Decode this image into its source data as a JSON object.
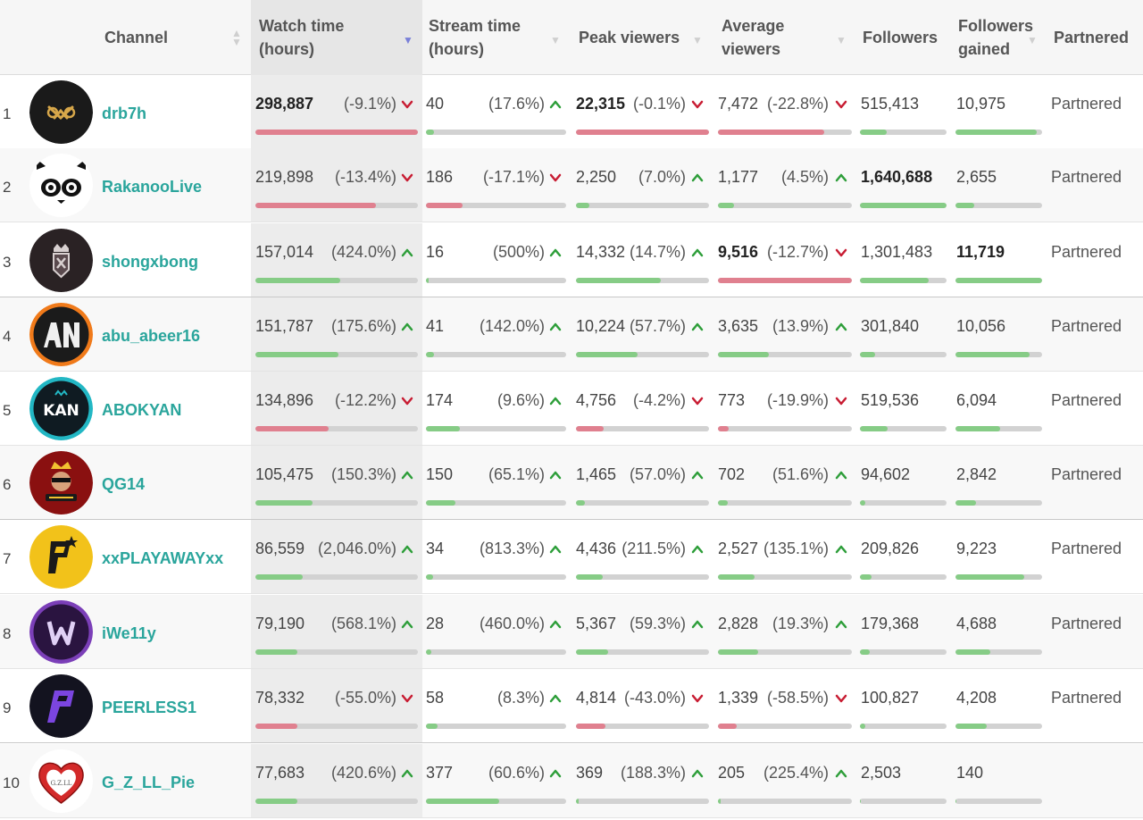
{
  "colors": {
    "up": "#2e9e3a",
    "down": "#c81d33",
    "bar_red": "#e0808f",
    "bar_green": "#86cc86",
    "channel": "#2aa59c"
  },
  "headers": {
    "channel": "Channel",
    "watch_line1": "Watch time",
    "watch_line2": "(hours)",
    "stream_line1": "Stream time",
    "stream_line2": "(hours)",
    "peak": "Peak viewers",
    "avg_line1": "Average",
    "avg_line2": "viewers",
    "followers": "Followers",
    "gained_line1": "Followers",
    "gained_line2": "gained",
    "partnered": "Partnered"
  },
  "rows": [
    {
      "rank": "1",
      "channel": "drb7h",
      "avatar_icon": "drb7h-logo-icon",
      "watch": {
        "value": "298,887",
        "change": "(-9.1%)",
        "dir": "down",
        "bar": 1.0,
        "bold": true
      },
      "stream": {
        "value": "40",
        "change": "(17.6%)",
        "dir": "up",
        "bar": 0.06
      },
      "peak": {
        "value": "22,315",
        "change": "(-0.1%)",
        "dir": "down",
        "bar": 1.0,
        "bold": true
      },
      "avg": {
        "value": "7,472",
        "change": "(-22.8%)",
        "dir": "down",
        "bar": 0.79
      },
      "followers": {
        "value": "515,413",
        "bar": 0.31
      },
      "gained": {
        "value": "10,975",
        "bar": 0.94
      },
      "partnered": "Partnered"
    },
    {
      "rank": "2",
      "channel": "RakanooLive",
      "avatar_icon": "panda-icon",
      "watch": {
        "value": "219,898",
        "change": "(-13.4%)",
        "dir": "down",
        "bar": 0.74
      },
      "stream": {
        "value": "186",
        "change": "(-17.1%)",
        "dir": "down",
        "bar": 0.26
      },
      "peak": {
        "value": "2,250",
        "change": "(7.0%)",
        "dir": "up",
        "bar": 0.1
      },
      "avg": {
        "value": "1,177",
        "change": "(4.5%)",
        "dir": "up",
        "bar": 0.12
      },
      "followers": {
        "value": "1,640,688",
        "bar": 1.0,
        "bold": true
      },
      "gained": {
        "value": "2,655",
        "bar": 0.22
      },
      "partnered": "Partnered"
    },
    {
      "rank": "3",
      "channel": "shongxbong",
      "avatar_icon": "crown-shield-icon",
      "watch": {
        "value": "157,014",
        "change": "(424.0%)",
        "dir": "up",
        "bar": 0.52
      },
      "stream": {
        "value": "16",
        "change": "(500%)",
        "dir": "up",
        "bar": 0.02
      },
      "peak": {
        "value": "14,332",
        "change": "(14.7%)",
        "dir": "up",
        "bar": 0.64
      },
      "avg": {
        "value": "9,516",
        "change": "(-12.7%)",
        "dir": "down",
        "bar": 1.0,
        "bold": true
      },
      "followers": {
        "value": "1,301,483",
        "bar": 0.79
      },
      "gained": {
        "value": "11,719",
        "bar": 1.0,
        "bold": true
      },
      "partnered": "Partnered"
    },
    {
      "rank": "4",
      "channel": "abu_abeer16",
      "avatar_icon": "an-monogram-icon",
      "watch": {
        "value": "151,787",
        "change": "(175.6%)",
        "dir": "up",
        "bar": 0.51
      },
      "stream": {
        "value": "41",
        "change": "(142.0%)",
        "dir": "up",
        "bar": 0.06
      },
      "peak": {
        "value": "10,224",
        "change": "(57.7%)",
        "dir": "up",
        "bar": 0.46
      },
      "avg": {
        "value": "3,635",
        "change": "(13.9%)",
        "dir": "up",
        "bar": 0.38
      },
      "followers": {
        "value": "301,840",
        "bar": 0.18
      },
      "gained": {
        "value": "10,056",
        "bar": 0.86
      },
      "partnered": "Partnered"
    },
    {
      "rank": "5",
      "channel": "ABOKYAN",
      "avatar_icon": "kan-logo-icon",
      "watch": {
        "value": "134,896",
        "change": "(-12.2%)",
        "dir": "down",
        "bar": 0.45
      },
      "stream": {
        "value": "174",
        "change": "(9.6%)",
        "dir": "up",
        "bar": 0.24
      },
      "peak": {
        "value": "4,756",
        "change": "(-4.2%)",
        "dir": "down",
        "bar": 0.21,
        "barColor": "red"
      },
      "avg": {
        "value": "773",
        "change": "(-19.9%)",
        "dir": "down",
        "bar": 0.08,
        "barColor": "red"
      },
      "followers": {
        "value": "519,536",
        "bar": 0.32
      },
      "gained": {
        "value": "6,094",
        "bar": 0.52
      },
      "partnered": "Partnered"
    },
    {
      "rank": "6",
      "channel": "QG14",
      "avatar_icon": "gamer-crown-icon",
      "watch": {
        "value": "105,475",
        "change": "(150.3%)",
        "dir": "up",
        "bar": 0.35
      },
      "stream": {
        "value": "150",
        "change": "(65.1%)",
        "dir": "up",
        "bar": 0.21
      },
      "peak": {
        "value": "1,465",
        "change": "(57.0%)",
        "dir": "up",
        "bar": 0.07
      },
      "avg": {
        "value": "702",
        "change": "(51.6%)",
        "dir": "up",
        "bar": 0.07
      },
      "followers": {
        "value": "94,602",
        "bar": 0.06
      },
      "gained": {
        "value": "2,842",
        "bar": 0.24
      },
      "partnered": "Partnered"
    },
    {
      "rank": "7",
      "channel": "xxPLAYAWAYxx",
      "avatar_icon": "p-star-icon",
      "watch": {
        "value": "86,559",
        "change": "(2,046.0%)",
        "dir": "up",
        "bar": 0.29
      },
      "stream": {
        "value": "34",
        "change": "(813.3%)",
        "dir": "up",
        "bar": 0.05
      },
      "peak": {
        "value": "4,436",
        "change": "(211.5%)",
        "dir": "up",
        "bar": 0.2
      },
      "avg": {
        "value": "2,527",
        "change": "(135.1%)",
        "dir": "up",
        "bar": 0.27
      },
      "followers": {
        "value": "209,826",
        "bar": 0.13
      },
      "gained": {
        "value": "9,223",
        "bar": 0.79
      },
      "partnered": "Partnered"
    },
    {
      "rank": "8",
      "channel": "iWe11y",
      "avatar_icon": "w-monogram-icon",
      "watch": {
        "value": "79,190",
        "change": "(568.1%)",
        "dir": "up",
        "bar": 0.26
      },
      "stream": {
        "value": "28",
        "change": "(460.0%)",
        "dir": "up",
        "bar": 0.04
      },
      "peak": {
        "value": "5,367",
        "change": "(59.3%)",
        "dir": "up",
        "bar": 0.24
      },
      "avg": {
        "value": "2,828",
        "change": "(19.3%)",
        "dir": "up",
        "bar": 0.3
      },
      "followers": {
        "value": "179,368",
        "bar": 0.11
      },
      "gained": {
        "value": "4,688",
        "bar": 0.4
      },
      "partnered": "Partnered"
    },
    {
      "rank": "9",
      "channel": "PEERLESS1",
      "avatar_icon": "p-slash-icon",
      "watch": {
        "value": "78,332",
        "change": "(-55.0%)",
        "dir": "down",
        "bar": 0.26
      },
      "stream": {
        "value": "58",
        "change": "(8.3%)",
        "dir": "up",
        "bar": 0.08
      },
      "peak": {
        "value": "4,814",
        "change": "(-43.0%)",
        "dir": "down",
        "bar": 0.22
      },
      "avg": {
        "value": "1,339",
        "change": "(-58.5%)",
        "dir": "down",
        "bar": 0.14
      },
      "followers": {
        "value": "100,827",
        "bar": 0.06
      },
      "gained": {
        "value": "4,208",
        "bar": 0.36
      },
      "partnered": "Partnered"
    },
    {
      "rank": "10",
      "channel": "G_Z_LL_Pie",
      "avatar_icon": "heart-icon",
      "watch": {
        "value": "77,683",
        "change": "(420.6%)",
        "dir": "up",
        "bar": 0.26
      },
      "stream": {
        "value": "377",
        "change": "(60.6%)",
        "dir": "up",
        "bar": 0.52
      },
      "peak": {
        "value": "369",
        "change": "(188.3%)",
        "dir": "up",
        "bar": 0.02
      },
      "avg": {
        "value": "205",
        "change": "(225.4%)",
        "dir": "up",
        "bar": 0.02
      },
      "followers": {
        "value": "2,503",
        "bar": 0.01
      },
      "gained": {
        "value": "140",
        "bar": 0.01
      },
      "partnered": ""
    }
  ]
}
